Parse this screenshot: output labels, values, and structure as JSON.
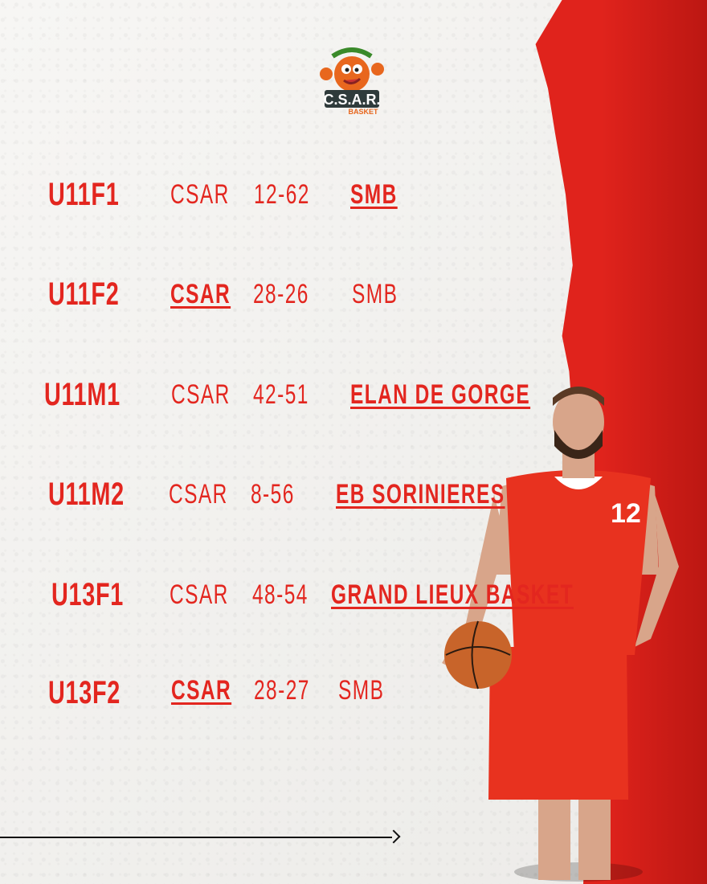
{
  "brand": {
    "logo_text": "C.S.A.R. BASKET",
    "accent_color": "#e3261f"
  },
  "results": [
    {
      "category": "U11F1",
      "home": "CSAR",
      "score": "12-62",
      "away": "SMB",
      "winner": "away"
    },
    {
      "category": "U11F2",
      "home": "CSAR",
      "score": "28-26",
      "away": "SMB",
      "winner": "home"
    },
    {
      "category": "U11M1",
      "home": "CSAR",
      "score": "42-51",
      "away": "ELAN DE GORGE",
      "winner": "away"
    },
    {
      "category": "U11M2",
      "home": "CSAR",
      "score": "8-56",
      "away": "EB SORINIERES",
      "winner": "away"
    },
    {
      "category": "U13F1",
      "home": "CSAR",
      "score": "48-54",
      "away": "GRAND LIEUX BASKET",
      "winner": "away"
    },
    {
      "category": "U13F2",
      "home": "CSAR",
      "score": "28-27",
      "away": "SMB",
      "winner": "home"
    }
  ],
  "player": {
    "jersey_number": "12"
  },
  "icons": {
    "arrow": "arrow-right-icon"
  }
}
